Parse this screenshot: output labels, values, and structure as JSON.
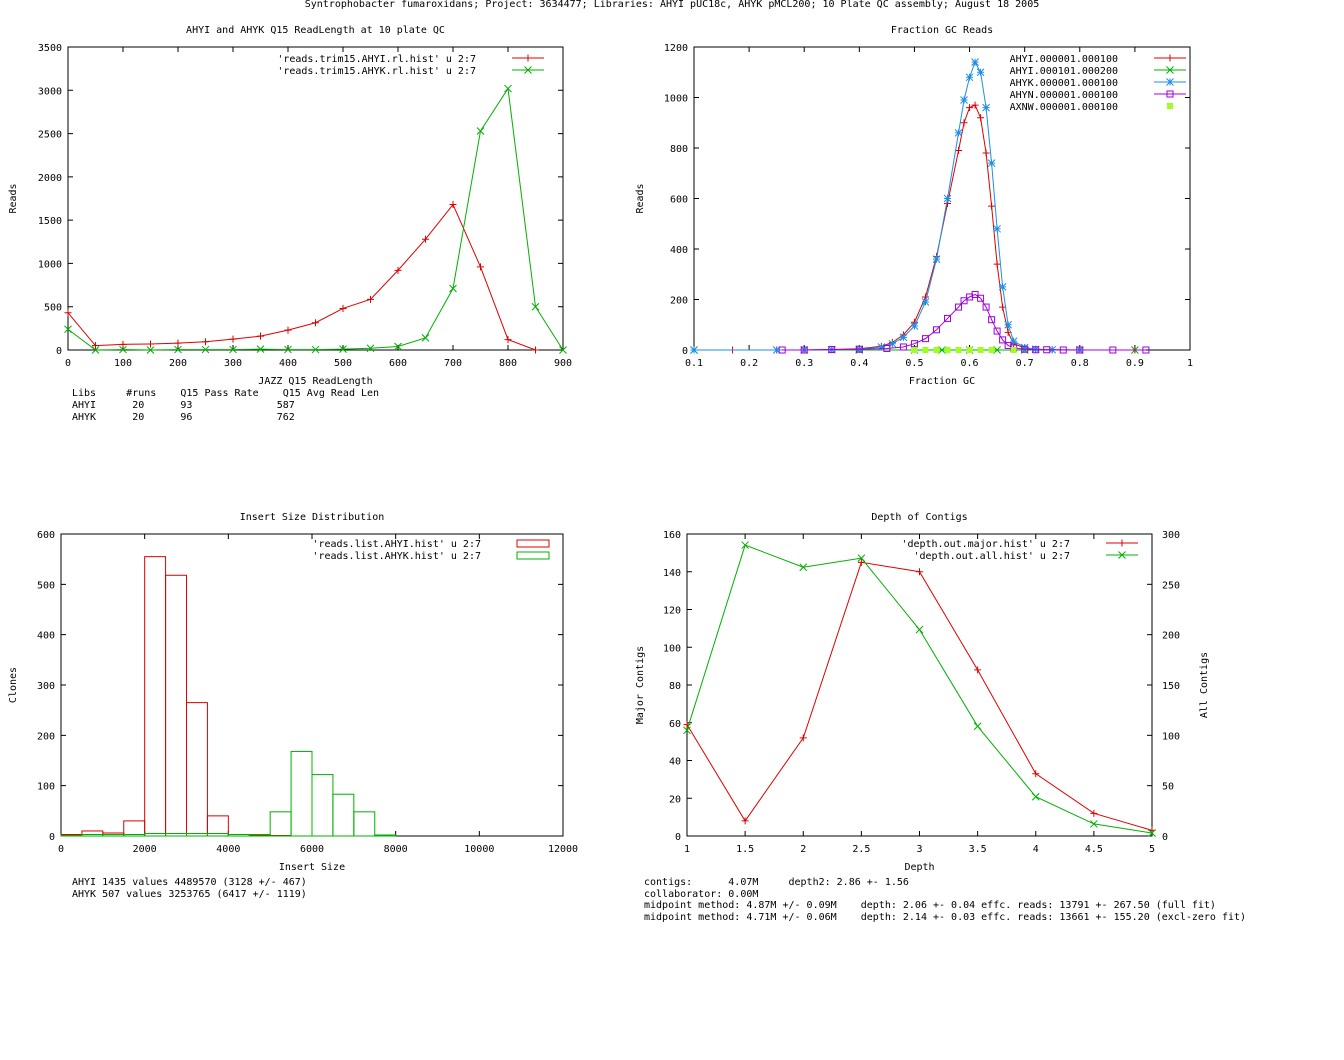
{
  "page_title": "Syntrophobacter fumaroxidans; Project: 3634477; Libraries: AHYI pUC18c, AHYK pMCL200; 10 Plate QC assembly; August 18 2005",
  "colors": {
    "red": "#dd0000",
    "green": "#00b000",
    "blue": "#1b8fe8",
    "purple": "#a000e0",
    "lime": "#a0ff20"
  },
  "readlength_stats": {
    "header": "Libs     #runs    Q15 Pass Rate    Q15 Avg Read Len",
    "rows": [
      "AHYI      20      93              587",
      "AHYK      20      96              762"
    ]
  },
  "insert_stats": {
    "rows": [
      "AHYI 1435 values 4489570 (3128 +/- 467)",
      "AHYK 507 values 3253765 (6417 +/- 1119)"
    ]
  },
  "depth_stats": {
    "rows": [
      "contigs:      4.07M     depth2: 2.86 +- 1.56",
      "collaborator: 0.00M",
      "midpoint method: 4.87M +/- 0.09M    depth: 2.06 +- 0.04 effc. reads: 13791 +- 267.50 (full fit)",
      "midpoint method: 4.71M +/- 0.06M    depth: 2.14 +- 0.03 effc. reads: 13661 +- 155.20 (excl-zero fit)"
    ]
  },
  "chart_data": [
    {
      "type": "line",
      "title": "AHYI and AHYK Q15 ReadLength at 10 plate QC",
      "xlabel": "JAZZ Q15 ReadLength",
      "ylabel": "Reads",
      "xlim": [
        0,
        900
      ],
      "ylim": [
        0,
        3500
      ],
      "xticks": [
        0,
        100,
        200,
        300,
        400,
        500,
        600,
        700,
        800,
        900
      ],
      "yticks": [
        0,
        500,
        1000,
        1500,
        2000,
        2500,
        3000,
        3500
      ],
      "series": [
        {
          "name": "'reads.trim15.AHYI.rl.hist' u 2:7",
          "color": "red",
          "marker": "plus",
          "x": [
            0,
            50,
            100,
            150,
            200,
            250,
            300,
            350,
            400,
            450,
            500,
            550,
            600,
            650,
            700,
            750,
            800,
            850
          ],
          "y": [
            430,
            50,
            65,
            70,
            80,
            95,
            125,
            160,
            230,
            315,
            480,
            585,
            920,
            1280,
            1680,
            960,
            120,
            0
          ]
        },
        {
          "name": "'reads.trim15.AHYK.rl.hist' u 2:7",
          "color": "green",
          "marker": "cross",
          "x": [
            0,
            50,
            100,
            150,
            200,
            250,
            300,
            350,
            400,
            450,
            500,
            550,
            600,
            650,
            700,
            750,
            800,
            850,
            900
          ],
          "y": [
            240,
            0,
            5,
            0,
            5,
            5,
            5,
            10,
            5,
            5,
            10,
            20,
            40,
            140,
            710,
            2530,
            3020,
            500,
            0
          ]
        }
      ]
    },
    {
      "type": "scatter",
      "title": "Fraction GC Reads",
      "xlabel": "Fraction GC",
      "ylabel": "Reads",
      "xlim": [
        0.1,
        1
      ],
      "ylim": [
        0,
        1200
      ],
      "xticks": [
        0.1,
        0.2,
        0.3,
        0.4,
        0.5,
        0.6,
        0.7,
        0.8,
        0.9,
        1
      ],
      "yticks": [
        0,
        200,
        400,
        600,
        800,
        1000,
        1200
      ],
      "series": [
        {
          "name": "AHYI.000001.000100",
          "color": "red",
          "marker": "plus",
          "line": true,
          "x": [
            0.1,
            0.17,
            0.25,
            0.3,
            0.35,
            0.4,
            0.44,
            0.46,
            0.48,
            0.5,
            0.52,
            0.54,
            0.56,
            0.58,
            0.59,
            0.6,
            0.61,
            0.62,
            0.63,
            0.64,
            0.65,
            0.66,
            0.67,
            0.68,
            0.7,
            0.72,
            0.75,
            0.8,
            0.9
          ],
          "y": [
            0,
            0,
            0,
            0,
            2,
            5,
            15,
            30,
            60,
            110,
            210,
            370,
            580,
            790,
            900,
            960,
            970,
            920,
            780,
            570,
            340,
            170,
            70,
            25,
            8,
            3,
            1,
            0,
            0
          ]
        },
        {
          "name": "AHYI.000101.000200",
          "color": "green",
          "marker": "cross",
          "line": true,
          "x": [
            0.1,
            0.3,
            0.4,
            0.5,
            0.55,
            0.6,
            0.65,
            0.7,
            0.8,
            0.9
          ],
          "y": [
            0,
            0,
            0,
            0,
            0,
            0,
            0,
            0,
            0,
            0
          ]
        },
        {
          "name": "AHYK.000001.000100",
          "color": "blue",
          "marker": "star",
          "line": true,
          "x": [
            0.1,
            0.25,
            0.3,
            0.35,
            0.4,
            0.44,
            0.46,
            0.48,
            0.5,
            0.52,
            0.54,
            0.56,
            0.58,
            0.59,
            0.6,
            0.61,
            0.62,
            0.63,
            0.64,
            0.65,
            0.66,
            0.67,
            0.68,
            0.7,
            0.72,
            0.75,
            0.8
          ],
          "y": [
            0,
            0,
            0,
            1,
            3,
            12,
            25,
            50,
            95,
            190,
            360,
            600,
            860,
            990,
            1080,
            1140,
            1100,
            960,
            740,
            480,
            250,
            100,
            35,
            10,
            3,
            1,
            0
          ]
        },
        {
          "name": "AHYN.000001.000100",
          "color": "purple",
          "marker": "square",
          "line": true,
          "x": [
            0.26,
            0.3,
            0.35,
            0.4,
            0.45,
            0.48,
            0.5,
            0.52,
            0.54,
            0.56,
            0.58,
            0.59,
            0.6,
            0.61,
            0.62,
            0.63,
            0.64,
            0.65,
            0.66,
            0.67,
            0.68,
            0.7,
            0.72,
            0.74,
            0.77,
            0.8,
            0.86,
            0.92
          ],
          "y": [
            0,
            0,
            2,
            3,
            6,
            12,
            25,
            45,
            80,
            125,
            170,
            195,
            210,
            220,
            205,
            170,
            120,
            75,
            40,
            18,
            8,
            3,
            1,
            1,
            0,
            0,
            0,
            0
          ]
        },
        {
          "name": "AXNW.000001.000100",
          "color": "lime",
          "marker": "filled-square",
          "line": false,
          "x": [
            0.5,
            0.52,
            0.54,
            0.56,
            0.58,
            0.6,
            0.62,
            0.64,
            0.68
          ],
          "y": [
            0,
            0,
            0,
            0,
            0,
            0,
            0,
            0,
            0
          ]
        }
      ]
    },
    {
      "type": "bar",
      "title": "Insert Size Distribution",
      "xlabel": "Insert Size",
      "ylabel": "Clones",
      "xlim": [
        0,
        12000
      ],
      "ylim": [
        0,
        600
      ],
      "xticks": [
        0,
        2000,
        4000,
        6000,
        8000,
        10000,
        12000
      ],
      "yticks": [
        0,
        100,
        200,
        300,
        400,
        500,
        600
      ],
      "bin_width": 500,
      "series": [
        {
          "name": "'reads.list.AHYI.hist' u 2:7",
          "color": "red",
          "x": [
            250,
            750,
            1250,
            1750,
            2250,
            2750,
            3250,
            3750,
            4250,
            4750,
            5250
          ],
          "y": [
            3,
            10,
            6,
            30,
            555,
            518,
            265,
            40,
            3,
            2,
            1
          ]
        },
        {
          "name": "'reads.list.AHYK.hist' u 2:7",
          "color": "green",
          "x": [
            250,
            750,
            1250,
            1750,
            2250,
            2750,
            3250,
            3750,
            4250,
            4750,
            5250,
            5750,
            6250,
            6750,
            7250,
            7750
          ],
          "y": [
            1,
            3,
            3,
            3,
            5,
            5,
            5,
            5,
            3,
            3,
            48,
            168,
            122,
            83,
            48,
            2
          ]
        }
      ]
    },
    {
      "type": "line",
      "title": "Depth of Contigs",
      "xlabel": "Depth",
      "ylabel": "Major Contigs",
      "y2label": "All Contigs",
      "xlim": [
        1,
        5
      ],
      "ylim": [
        0,
        160
      ],
      "y2lim": [
        0,
        300
      ],
      "xticks": [
        1,
        1.5,
        2,
        2.5,
        3,
        3.5,
        4,
        4.5,
        5
      ],
      "yticks": [
        0,
        20,
        40,
        60,
        80,
        100,
        120,
        140,
        160
      ],
      "y2ticks": [
        0,
        50,
        100,
        150,
        200,
        250,
        300
      ],
      "series": [
        {
          "name": "'depth.out.major.hist' u 2:7",
          "color": "red",
          "marker": "plus",
          "axis": "y1",
          "x": [
            1,
            1.5,
            2,
            2.5,
            3,
            3.5,
            4,
            4.5,
            5
          ],
          "y": [
            59,
            8,
            52,
            145,
            140,
            88,
            33,
            12,
            3
          ]
        },
        {
          "name": "'depth.out.all.hist' u 2:7",
          "color": "green",
          "marker": "cross",
          "axis": "y2",
          "x": [
            1,
            1.5,
            2,
            2.5,
            3,
            3.5,
            4,
            4.5,
            5
          ],
          "y": [
            105,
            289,
            267,
            276,
            205,
            109,
            39,
            12,
            3
          ]
        }
      ]
    }
  ]
}
